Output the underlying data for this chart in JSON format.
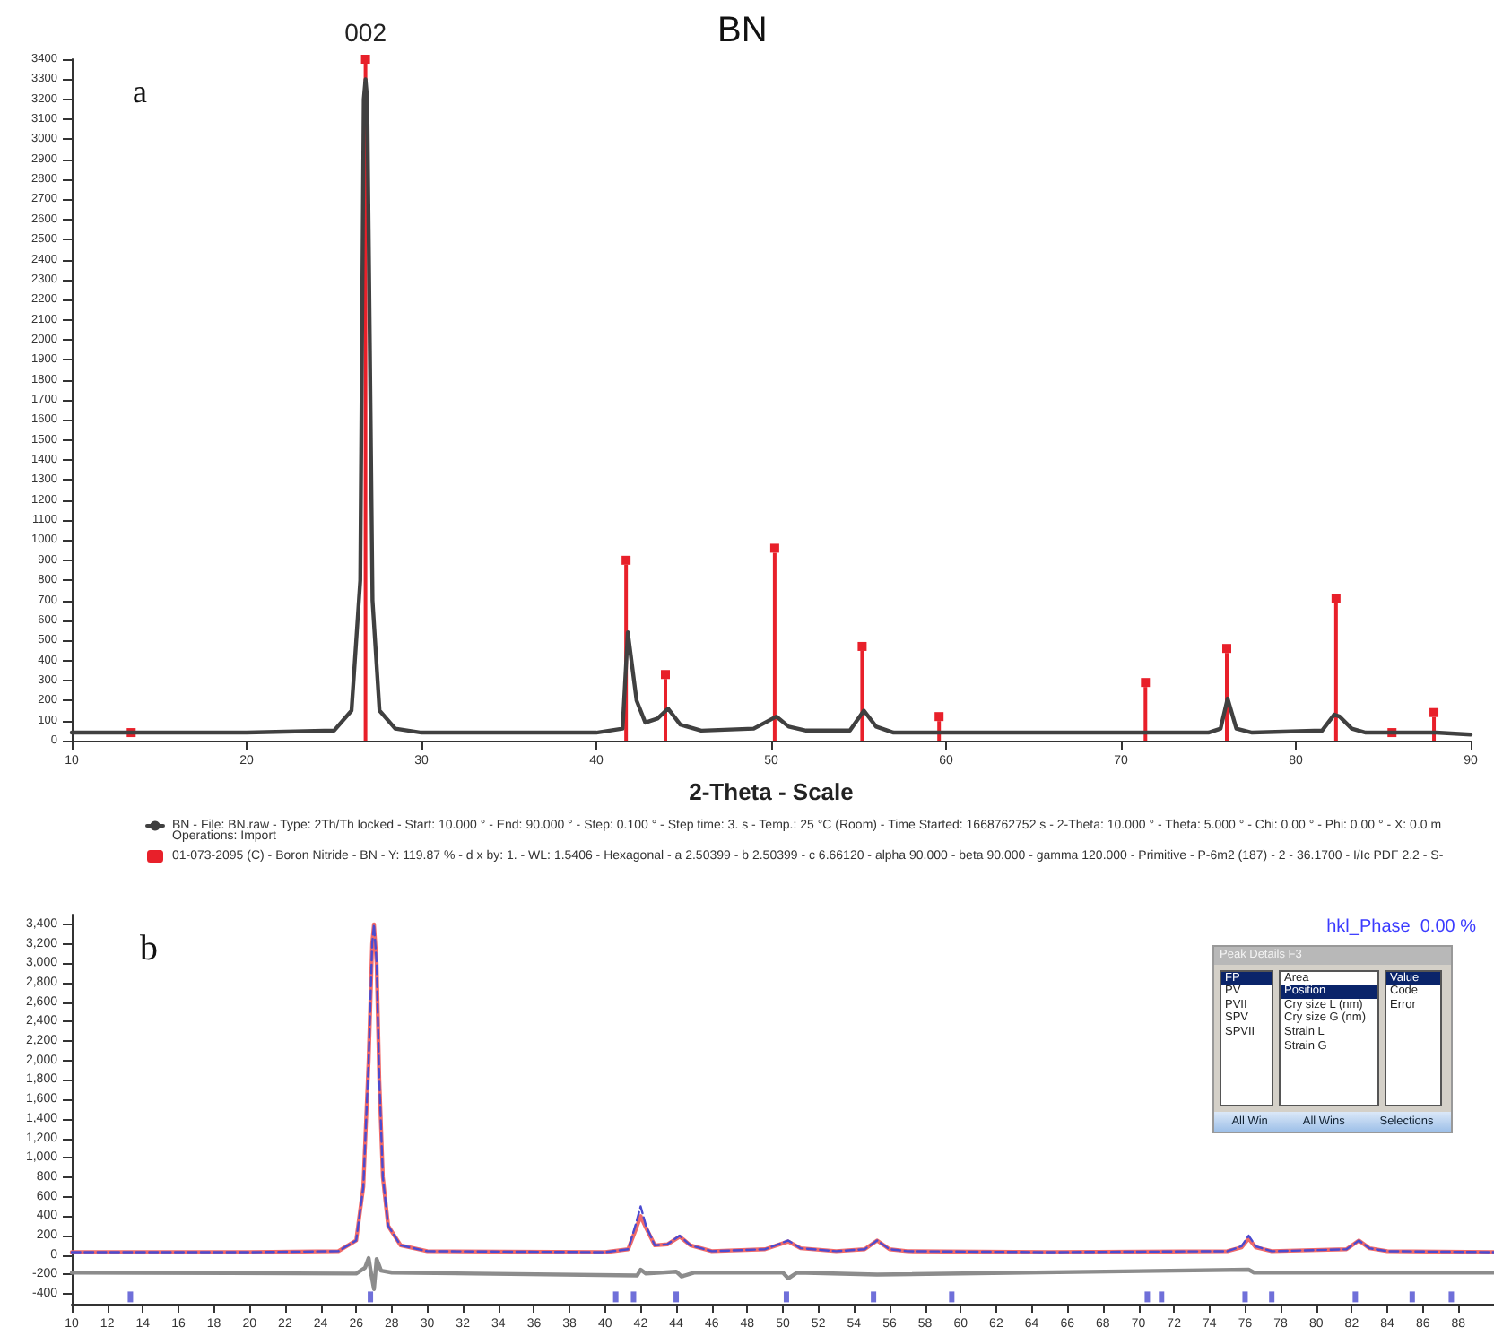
{
  "chart_data": [
    {
      "type": "line",
      "title": "BN",
      "xlabel": "2-Theta - Scale",
      "legend": "bottom",
      "grid": false,
      "xlim": [
        10,
        90
      ],
      "xticks": [
        10,
        20,
        30,
        40,
        50,
        60,
        70,
        80,
        90
      ],
      "ylim": [
        0,
        3400
      ],
      "yticks": [
        0,
        100,
        200,
        300,
        400,
        500,
        600,
        700,
        800,
        900,
        1000,
        1100,
        1200,
        1300,
        1400,
        1500,
        1600,
        1700,
        1800,
        1900,
        2000,
        2100,
        2200,
        2300,
        2400,
        2500,
        2600,
        2700,
        2800,
        2900,
        3000,
        3100,
        3200,
        3300,
        3400
      ],
      "annotations": [
        {
          "text": "002",
          "x": 26.8,
          "y": 3400
        },
        "a",
        "Operations: Import"
      ],
      "series": [
        {
          "name": "BN - File: BN.raw - Type: 2Th/Th locked - Start: 10.000 ° - End: 90.000 ° - Step: 0.100 ° - Step time: 3. s - Temp.: 25 °C (Room) - Time Started: 1668762752 s - 2-Theta: 10.000 ° - Theta: 5.000 ° - Chi: 0.00 ° - Phi: 0.00 ° - X: 0.0 m",
          "color": "#404040",
          "x": [
            10,
            20,
            25,
            26,
            26.5,
            26.7,
            26.8,
            26.9,
            27.2,
            27.6,
            28.5,
            30,
            40,
            41.5,
            41.8,
            42.3,
            42.8,
            43.5,
            44.1,
            44.8,
            46,
            49,
            50.3,
            51,
            52,
            54.5,
            55.3,
            56,
            57,
            59.5,
            65,
            70,
            75,
            75.7,
            76.1,
            76.6,
            77.5,
            81.5,
            82.2,
            82.5,
            83.2,
            84,
            88,
            90
          ],
          "values": [
            40,
            40,
            50,
            150,
            800,
            3200,
            3300,
            3200,
            700,
            150,
            60,
            40,
            40,
            60,
            540,
            200,
            90,
            110,
            160,
            80,
            50,
            60,
            120,
            70,
            50,
            50,
            150,
            70,
            40,
            40,
            40,
            40,
            40,
            60,
            210,
            60,
            40,
            50,
            130,
            120,
            60,
            40,
            40,
            30
          ]
        },
        {
          "name": "01-073-2095 (C) - Boron Nitride - BN - Y: 119.87 % - d x by: 1. - WL: 1.5406 - Hexagonal - a 2.50399 - b 2.50399 - c 6.66120 - alpha 90.000 - beta 90.000 - gamma 120.000 - Primitive - P-6m2 (187) - 2 - 36.1700 - I/Ic PDF 2.2 - S-",
          "type": "lollipop",
          "color": "#e8202a",
          "x": [
            13.4,
            26.8,
            41.7,
            43.95,
            50.2,
            55.2,
            59.6,
            71.4,
            76.05,
            82.3,
            85.5,
            87.9
          ],
          "values": [
            40,
            3400,
            900,
            330,
            960,
            470,
            120,
            290,
            460,
            710,
            40,
            140
          ]
        }
      ]
    },
    {
      "type": "line",
      "grid": false,
      "xlim": [
        10,
        90
      ],
      "xticks": [
        10,
        12,
        14,
        16,
        18,
        20,
        22,
        24,
        26,
        28,
        30,
        32,
        34,
        36,
        38,
        40,
        42,
        44,
        46,
        48,
        50,
        52,
        54,
        56,
        58,
        60,
        62,
        64,
        66,
        68,
        70,
        72,
        74,
        76,
        78,
        80,
        82,
        84,
        86,
        88
      ],
      "ylim": [
        -500,
        3500
      ],
      "yticks": [
        -400,
        -200,
        0,
        200,
        400,
        600,
        800,
        {
          "value": 1000,
          "label": "1,000"
        },
        {
          "value": 1200,
          "label": "1,200"
        },
        {
          "value": 1400,
          "label": "1,400"
        },
        {
          "value": 1600,
          "label": "1,600"
        },
        {
          "value": 1800,
          "label": "1,800"
        },
        {
          "value": 2000,
          "label": "2,000"
        },
        {
          "value": 2200,
          "label": "2,200"
        },
        {
          "value": 2400,
          "label": "2,400"
        },
        {
          "value": 2600,
          "label": "2,600"
        },
        {
          "value": 2800,
          "label": "2,800"
        },
        {
          "value": 3000,
          "label": "3,000"
        },
        {
          "value": 3200,
          "label": "3,200"
        },
        {
          "value": 3400,
          "label": "3,400"
        }
      ],
      "annotations": [
        "b",
        "hkl_Phase  0.00 %",
        "Peak Details F3",
        "FP",
        "PV",
        "PVII",
        "SPV",
        "SPVII",
        "Area",
        "Position",
        "Cry size L (nm)",
        "Cry size G (nm)",
        "Strain L",
        "Strain G",
        "Value",
        "Code",
        "Error",
        "All Win",
        "All Wins",
        "Selections"
      ],
      "series": [
        {
          "color": "#f06a6a",
          "x": [
            10,
            20,
            25,
            26,
            26.4,
            26.7,
            26.9,
            27.0,
            27.15,
            27.3,
            27.5,
            27.8,
            28.5,
            30,
            40,
            41.3,
            41.7,
            42.0,
            42.3,
            42.8,
            43.5,
            44.2,
            44.8,
            46,
            49,
            50.3,
            51,
            53,
            54.6,
            55.3,
            56,
            57,
            65,
            75,
            75.8,
            76.2,
            76.6,
            77.5,
            81.7,
            82.4,
            83,
            84,
            90
          ],
          "values": [
            30,
            30,
            40,
            150,
            700,
            2000,
            3200,
            3400,
            3000,
            1800,
            800,
            300,
            100,
            40,
            30,
            60,
            250,
            400,
            280,
            100,
            110,
            190,
            100,
            40,
            60,
            140,
            70,
            40,
            60,
            150,
            60,
            40,
            30,
            40,
            80,
            170,
            80,
            40,
            60,
            150,
            70,
            40,
            30
          ]
        },
        {
          "color": "#4b4bd0",
          "line_style": "dashed",
          "x": [
            10,
            20,
            25,
            26,
            26.4,
            26.7,
            26.9,
            27.0,
            27.15,
            27.3,
            27.5,
            27.8,
            28.5,
            30,
            40,
            41.3,
            41.7,
            42.0,
            42.3,
            42.8,
            43.5,
            44.2,
            44.8,
            46,
            49,
            50.3,
            51,
            53,
            54.6,
            55.3,
            56,
            57,
            65,
            75,
            75.8,
            76.2,
            76.6,
            77.5,
            81.7,
            82.4,
            83,
            84,
            90
          ],
          "values": [
            30,
            30,
            40,
            150,
            700,
            2000,
            3200,
            3400,
            3000,
            1800,
            800,
            300,
            100,
            40,
            30,
            60,
            300,
            500,
            300,
            100,
            110,
            200,
            100,
            40,
            60,
            150,
            70,
            40,
            60,
            150,
            60,
            40,
            30,
            40,
            90,
            200,
            90,
            40,
            60,
            150,
            70,
            40,
            30
          ]
        },
        {
          "color": "#8c8c8c",
          "x": [
            10,
            26,
            26.5,
            26.7,
            26.85,
            27.0,
            27.15,
            27.4,
            28,
            41.8,
            42.0,
            42.3,
            44,
            44.3,
            45,
            50,
            50.3,
            50.8,
            55.3,
            76.2,
            76.5,
            90
          ],
          "values": [
            -180,
            -190,
            -130,
            -30,
            -200,
            -350,
            -40,
            -160,
            -180,
            -210,
            -150,
            -190,
            -170,
            -220,
            -180,
            -180,
            -240,
            -180,
            -200,
            -150,
            -180,
            -180
          ]
        },
        {
          "type": "scatter",
          "color": "#4b4bd0",
          "x": [
            13.3,
            26.8,
            40.6,
            41.6,
            44.0,
            50.2,
            55.1,
            59.5,
            70.5,
            71.3,
            76.0,
            77.5,
            82.2,
            85.4,
            87.6
          ],
          "values": [
            -430,
            -430,
            -430,
            -430,
            -430,
            -430,
            -430,
            -430,
            -430,
            -430,
            -430,
            -430,
            -430,
            -430,
            -430
          ]
        }
      ]
    }
  ]
}
